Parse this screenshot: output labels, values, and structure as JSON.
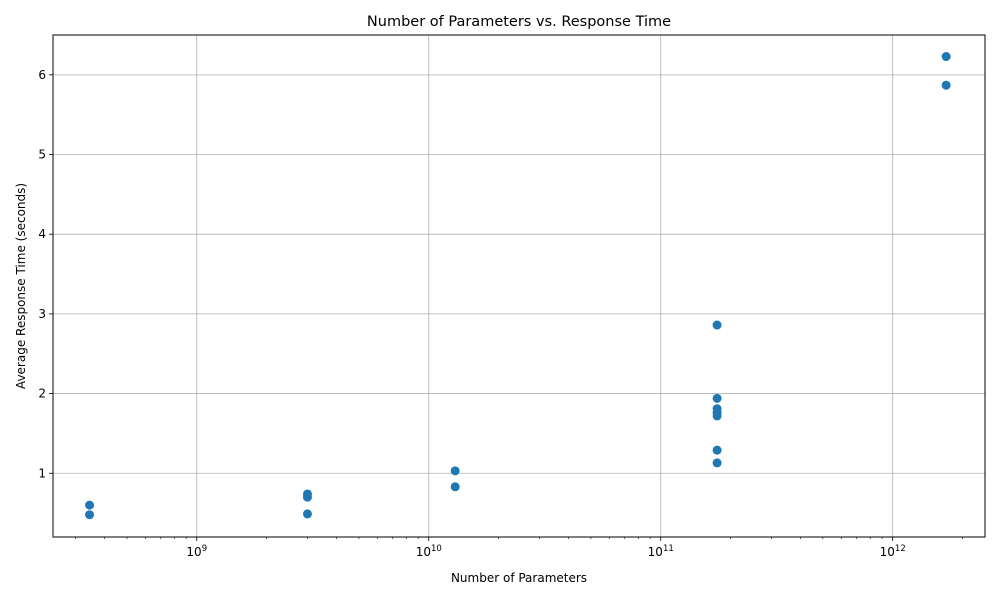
{
  "chart_data": {
    "type": "scatter",
    "title": "Number of Parameters vs. Response Time",
    "xlabel": "Number of Parameters",
    "ylabel": "Average Response Time (seconds)",
    "xscale": "log",
    "xlim": [
      240000000,
      2500000000000
    ],
    "ylim": [
      0.2,
      6.5
    ],
    "grid": true,
    "color": "#1f77b4",
    "xticks": [
      {
        "value": 1000000000,
        "base": "10",
        "exp": "9"
      },
      {
        "value": 10000000000,
        "base": "10",
        "exp": "10"
      },
      {
        "value": 100000000000,
        "base": "10",
        "exp": "11"
      },
      {
        "value": 1000000000000,
        "base": "10",
        "exp": "12"
      }
    ],
    "yticks": [
      1,
      2,
      3,
      4,
      5,
      6
    ],
    "series": [
      {
        "points": [
          {
            "x": 345000000,
            "y": 0.6
          },
          {
            "x": 345000000,
            "y": 0.48
          },
          {
            "x": 3000000000,
            "y": 0.74
          },
          {
            "x": 3000000000,
            "y": 0.7
          },
          {
            "x": 3000000000,
            "y": 0.49
          },
          {
            "x": 13000000000,
            "y": 1.03
          },
          {
            "x": 13000000000,
            "y": 0.83
          },
          {
            "x": 175000000000,
            "y": 2.86
          },
          {
            "x": 175000000000,
            "y": 1.94
          },
          {
            "x": 175000000000,
            "y": 1.81
          },
          {
            "x": 175000000000,
            "y": 1.76
          },
          {
            "x": 175000000000,
            "y": 1.72
          },
          {
            "x": 175000000000,
            "y": 1.29
          },
          {
            "x": 175000000000,
            "y": 1.13
          },
          {
            "x": 1700000000000,
            "y": 6.23
          },
          {
            "x": 1700000000000,
            "y": 5.87
          }
        ]
      }
    ]
  }
}
